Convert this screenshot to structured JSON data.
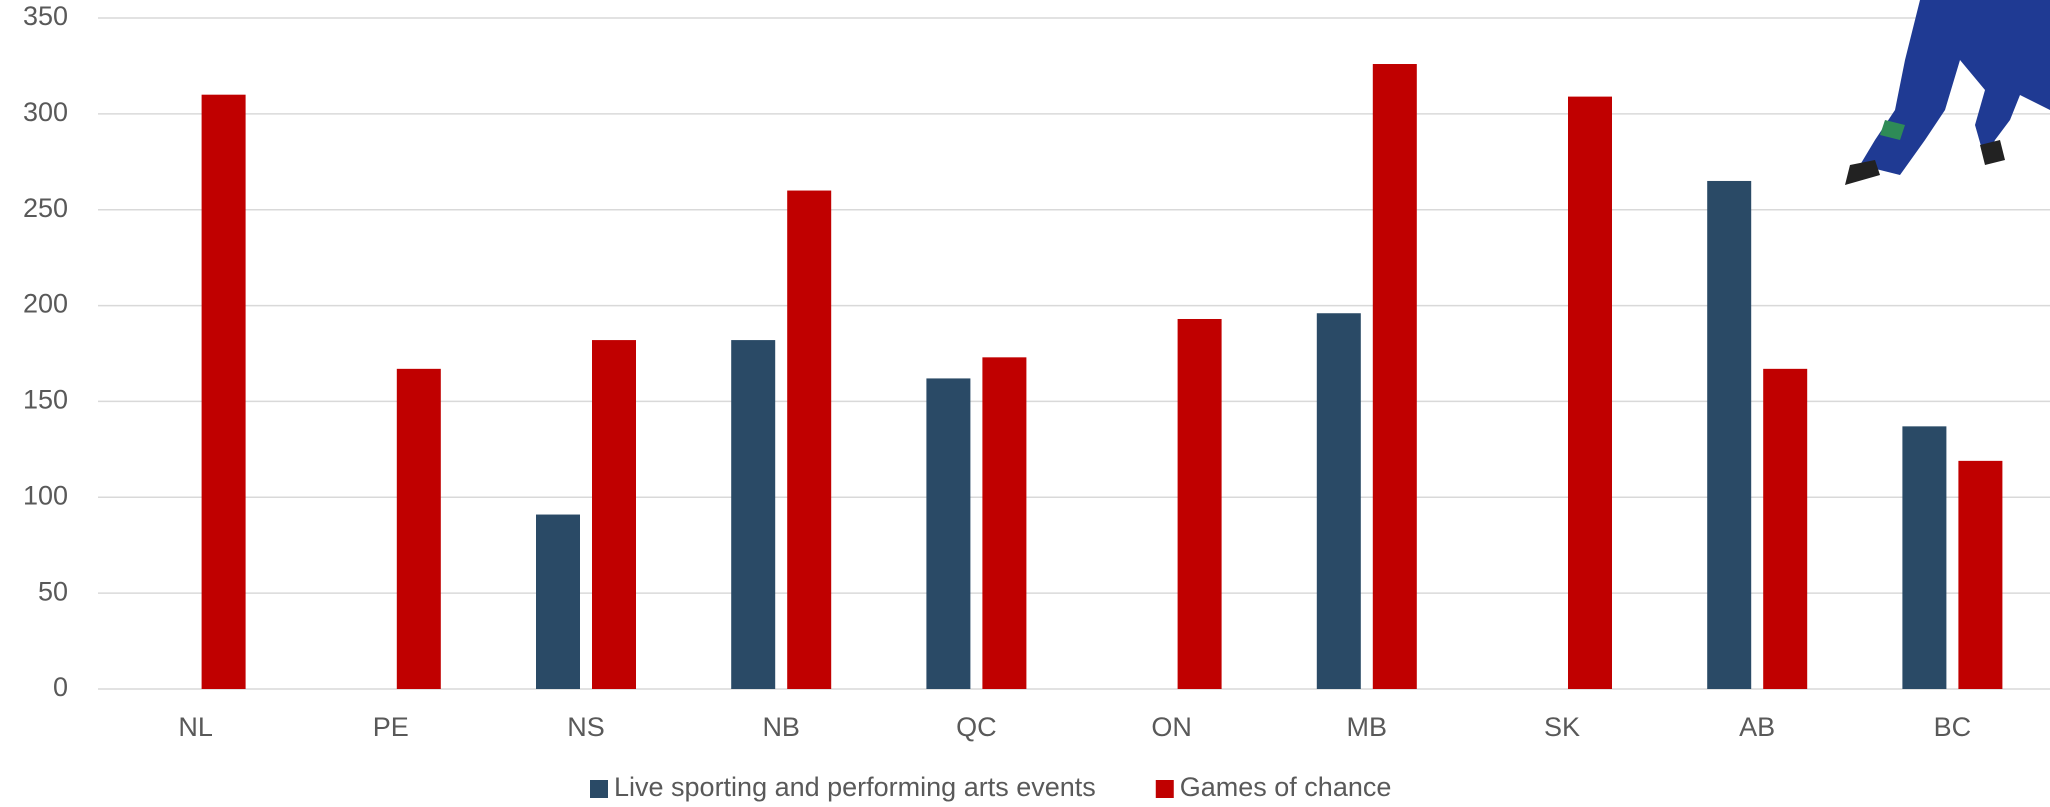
{
  "chart_data": {
    "type": "bar",
    "categories": [
      "NL",
      "PE",
      "NS",
      "NB",
      "QC",
      "ON",
      "MB",
      "SK",
      "AB",
      "BC"
    ],
    "series": [
      {
        "name": "Live sporting and performing arts events",
        "color": "#2a4a66",
        "values": [
          null,
          null,
          91,
          182,
          162,
          null,
          196,
          null,
          265,
          137
        ]
      },
      {
        "name": "Games of chance",
        "color": "#c00000",
        "values": [
          310,
          167,
          182,
          260,
          173,
          193,
          326,
          309,
          167,
          119
        ]
      }
    ],
    "ylim": [
      0,
      350
    ],
    "yticks": [
      0,
      50,
      100,
      150,
      200,
      250,
      300,
      350
    ],
    "grid": true,
    "legend": "bottom"
  }
}
